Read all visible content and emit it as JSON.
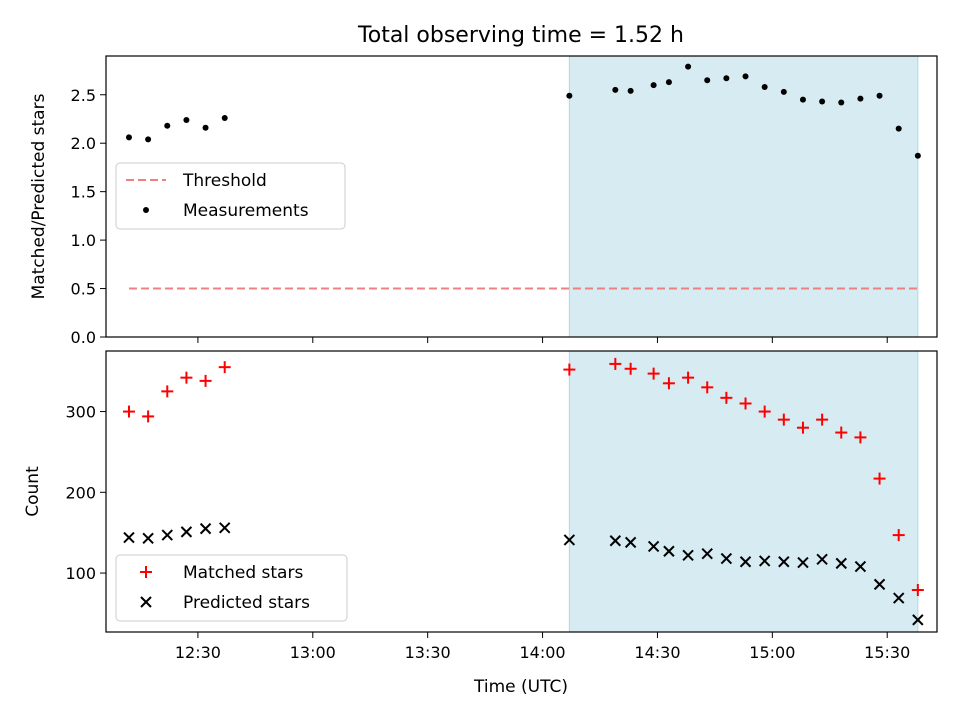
{
  "title": "Total observing time = 1.52 h",
  "xlabel": "Time (UTC)",
  "x_tick_labels": [
    "12:30",
    "13:00",
    "13:30",
    "14:00",
    "14:30",
    "15:00",
    "15:30"
  ],
  "colors": {
    "threshold": "#f08080",
    "measurements": "#000000",
    "matched": "#ff0000",
    "predicted": "#000000",
    "highlight": "#add8e6"
  },
  "chart_data": [
    {
      "type": "scatter",
      "ylabel": "Matched/Predicted stars",
      "xlim": [
        "12:06",
        "15:43"
      ],
      "ylim": [
        0,
        2.9
      ],
      "yticks": [
        "0.0",
        "0.5",
        "1.0",
        "1.5",
        "2.0",
        "2.5"
      ],
      "legend": "center-left",
      "highlight_span": [
        "14:07",
        "15:38"
      ],
      "threshold": {
        "name": "Threshold",
        "value": 0.5,
        "x": [
          "12:12",
          "15:38"
        ]
      },
      "series": [
        {
          "name": "Measurements",
          "marker": "dot",
          "x": [
            "12:12",
            "12:17",
            "12:22",
            "12:27",
            "12:32",
            "12:37",
            "14:07",
            "14:19",
            "14:23",
            "14:29",
            "14:33",
            "14:38",
            "14:43",
            "14:48",
            "14:53",
            "14:58",
            "15:03",
            "15:08",
            "15:13",
            "15:18",
            "15:23",
            "15:28",
            "15:33",
            "15:38"
          ],
          "y": [
            2.06,
            2.04,
            2.18,
            2.24,
            2.16,
            2.26,
            2.49,
            2.55,
            2.54,
            2.6,
            2.63,
            2.79,
            2.65,
            2.67,
            2.69,
            2.58,
            2.53,
            2.45,
            2.43,
            2.42,
            2.46,
            2.49,
            2.15,
            1.87
          ]
        }
      ]
    },
    {
      "type": "scatter",
      "ylabel": "Count",
      "xlim": [
        "12:06",
        "15:43"
      ],
      "ylim": [
        27,
        375
      ],
      "yticks": [
        "100",
        "200",
        "300"
      ],
      "legend": "lower-left",
      "highlight_span": [
        "14:07",
        "15:38"
      ],
      "series": [
        {
          "name": "Matched stars",
          "marker": "plus",
          "x": [
            "12:12",
            "12:17",
            "12:22",
            "12:27",
            "12:32",
            "12:37",
            "14:07",
            "14:19",
            "14:23",
            "14:29",
            "14:33",
            "14:38",
            "14:43",
            "14:48",
            "14:53",
            "14:58",
            "15:03",
            "15:08",
            "15:13",
            "15:18",
            "15:23",
            "15:28",
            "15:33",
            "15:38"
          ],
          "y": [
            300,
            294,
            325,
            342,
            338,
            355,
            352,
            359,
            353,
            347,
            335,
            342,
            330,
            317,
            310,
            300,
            290,
            280,
            290,
            274,
            268,
            217,
            147,
            79
          ]
        },
        {
          "name": "Predicted stars",
          "marker": "x",
          "x": [
            "12:12",
            "12:17",
            "12:22",
            "12:27",
            "12:32",
            "12:37",
            "14:07",
            "14:19",
            "14:23",
            "14:29",
            "14:33",
            "14:38",
            "14:43",
            "14:48",
            "14:53",
            "14:58",
            "15:03",
            "15:08",
            "15:13",
            "15:18",
            "15:23",
            "15:28",
            "15:33",
            "15:38"
          ],
          "y": [
            144,
            143,
            147,
            151,
            155,
            156,
            141,
            140,
            138,
            133,
            127,
            122,
            124,
            118,
            114,
            115,
            114,
            113,
            117,
            112,
            108,
            86,
            69,
            42
          ]
        }
      ]
    }
  ]
}
